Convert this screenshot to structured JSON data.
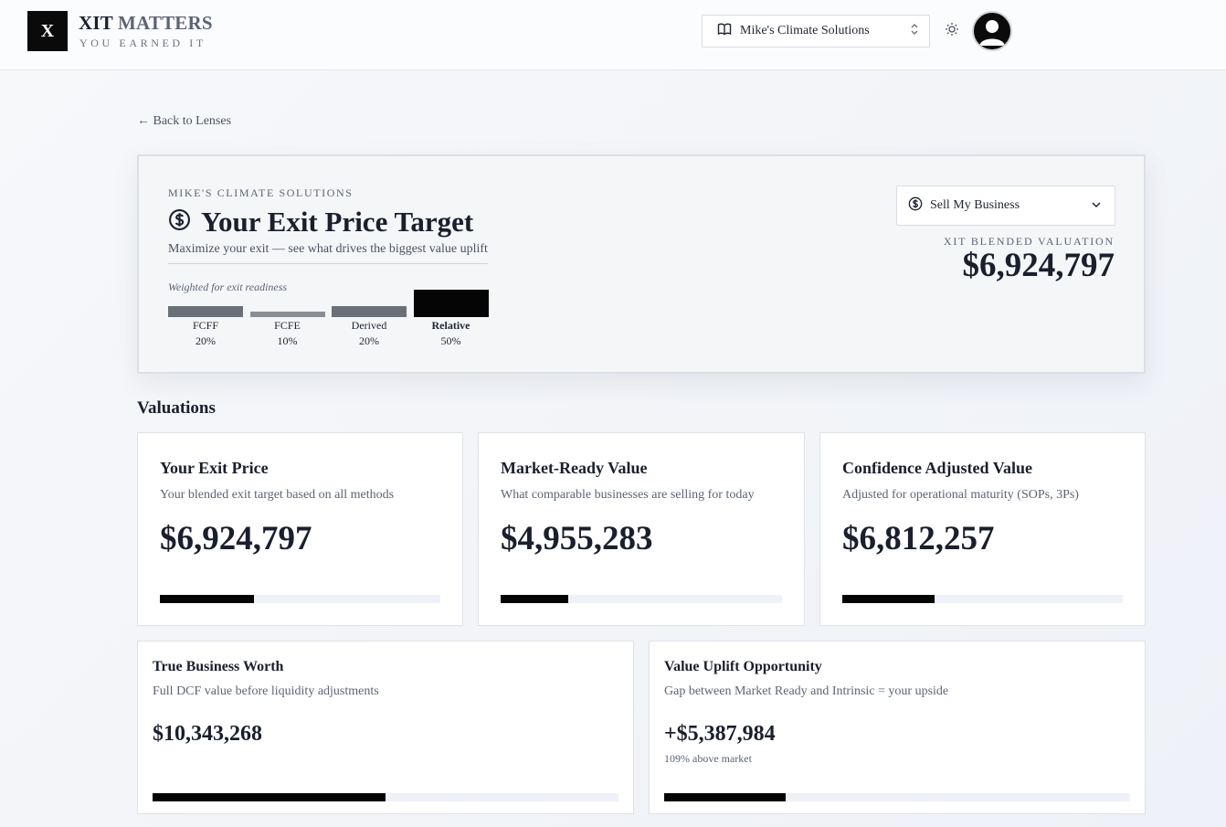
{
  "header": {
    "logo_letter": "X",
    "brand_part1": "XIT",
    "brand_part2": "MATTERS",
    "tagline": "YOU EARNED IT",
    "company_selector": "Mike's Climate Solutions",
    "icons": [
      "book-icon",
      "chevron-updown-icon",
      "sun-icon",
      "user-avatar-icon"
    ]
  },
  "back_link": "← Back to Lenses",
  "hero": {
    "eyebrow": "MIKE'S CLIMATE SOLUTIONS",
    "title": "Your Exit Price Target",
    "description": "Maximize your exit — see what drives the biggest value uplift",
    "weights_caption": "Weighted for exit readiness",
    "weights": [
      {
        "name": "FCFF",
        "percent_label": "20%",
        "weight": 0.2,
        "active": false
      },
      {
        "name": "FCFE",
        "percent_label": "10%",
        "weight": 0.1,
        "active": false
      },
      {
        "name": "Derived",
        "percent_label": "20%",
        "weight": 0.2,
        "active": false
      },
      {
        "name": "Relative",
        "percent_label": "50%",
        "weight": 0.5,
        "active": true
      }
    ],
    "goal_select": "Sell My Business",
    "blended_label": "XIT BLENDED VALUATION",
    "blended_value": "$6,924,797"
  },
  "valuations": {
    "section_title": "Valuations",
    "cards": [
      {
        "title": "Your Exit Price",
        "description": "Your blended exit target based on all methods",
        "value": "$6,924,797",
        "note": "",
        "progress": 0.335
      },
      {
        "title": "Market-Ready Value",
        "description": "What comparable businesses are selling for today",
        "value": "$4,955,283",
        "note": "",
        "progress": 0.24
      },
      {
        "title": "Confidence Adjusted Value",
        "description": "Adjusted for operational maturity (SOPs, 3Ps)",
        "value": "$6,812,257",
        "note": "",
        "progress": 0.33
      },
      {
        "title": "True Business Worth",
        "description": "Full DCF value before liquidity adjustments",
        "value": "$10,343,268",
        "note": "",
        "progress": 0.5
      },
      {
        "title": "Value Uplift Opportunity",
        "description": "Gap between Market Ready and Intrinsic = your upside",
        "value": "+$5,387,984",
        "note": "109% above market",
        "progress": 0.26
      }
    ]
  },
  "colors": {
    "accent": "#050505",
    "track": "#eef1f8",
    "weight_bar": "#6b6f78",
    "weight_bar_light": "#8a8e96"
  }
}
